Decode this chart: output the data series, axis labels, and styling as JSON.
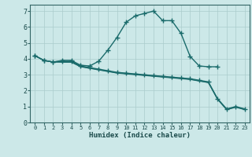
{
  "xlabel": "Humidex (Indice chaleur)",
  "xlim": [
    -0.5,
    23.5
  ],
  "ylim": [
    0,
    7.4
  ],
  "xticks": [
    0,
    1,
    2,
    3,
    4,
    5,
    6,
    7,
    8,
    9,
    10,
    11,
    12,
    13,
    14,
    15,
    16,
    17,
    18,
    19,
    20,
    21,
    22,
    23
  ],
  "yticks": [
    0,
    1,
    2,
    3,
    4,
    5,
    6,
    7
  ],
  "background_color": "#cce8e8",
  "grid_color": "#aacccc",
  "line_color": "#1a6b6b",
  "lines": [
    {
      "x": [
        0,
        1,
        2,
        3,
        4,
        5,
        6,
        7,
        8,
        9,
        10,
        11,
        12,
        13,
        14,
        15,
        16,
        17,
        18,
        19,
        20
      ],
      "y": [
        4.2,
        3.9,
        3.8,
        3.9,
        3.9,
        3.6,
        3.55,
        3.85,
        4.55,
        5.35,
        6.3,
        6.7,
        6.85,
        7.0,
        6.4,
        6.4,
        5.6,
        4.15,
        3.55,
        3.5,
        3.5
      ],
      "marker": "+",
      "markersize": 4,
      "linewidth": 1.0,
      "linestyle": "-"
    },
    {
      "x": [
        0,
        1,
        2,
        3,
        4,
        5,
        6,
        7,
        8,
        9,
        10,
        11,
        12,
        13,
        14,
        15,
        16,
        17,
        18,
        19,
        20,
        21,
        22,
        23
      ],
      "y": [
        4.2,
        3.9,
        3.8,
        3.85,
        3.85,
        3.55,
        3.45,
        3.35,
        3.25,
        3.15,
        3.1,
        3.05,
        3.0,
        2.95,
        2.9,
        2.85,
        2.8,
        2.75,
        2.65,
        2.55,
        1.5,
        0.85,
        1.0,
        0.85
      ],
      "marker": "+",
      "markersize": 4,
      "linewidth": 1.0,
      "linestyle": "-"
    },
    {
      "x": [
        0,
        1,
        2,
        3,
        4,
        5,
        6,
        7,
        8,
        9,
        10,
        11,
        12,
        13,
        14,
        15,
        16,
        17,
        18,
        19,
        20,
        21,
        22,
        23
      ],
      "y": [
        4.2,
        3.9,
        3.8,
        3.82,
        3.82,
        3.52,
        3.42,
        3.32,
        3.22,
        3.12,
        3.07,
        3.02,
        2.97,
        2.92,
        2.87,
        2.82,
        2.77,
        2.72,
        2.62,
        2.52,
        1.48,
        0.82,
        0.98,
        0.82
      ],
      "marker": null,
      "markersize": 0,
      "linewidth": 0.8,
      "linestyle": "-"
    },
    {
      "x": [
        0,
        1,
        2,
        3,
        4,
        5,
        6,
        7,
        8,
        9,
        10,
        11,
        12,
        13,
        14,
        15,
        16,
        17,
        18,
        19,
        20,
        21,
        22,
        23
      ],
      "y": [
        4.2,
        3.9,
        3.8,
        3.78,
        3.78,
        3.5,
        3.4,
        3.3,
        3.2,
        3.1,
        3.05,
        3.0,
        2.95,
        2.9,
        2.85,
        2.8,
        2.75,
        2.7,
        2.6,
        2.5,
        1.45,
        0.8,
        0.95,
        0.8
      ],
      "marker": null,
      "markersize": 0,
      "linewidth": 0.8,
      "linestyle": "-"
    }
  ]
}
